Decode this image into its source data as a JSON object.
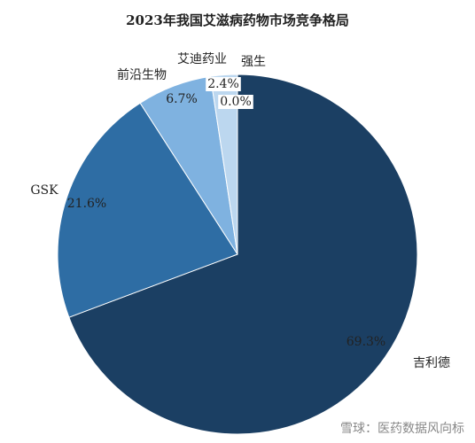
{
  "chart_data": {
    "type": "pie",
    "title": "2023年我国艾滋病药物市场竞争格局",
    "categories": [
      "吉利德",
      "GSK",
      "前沿生物",
      "艾迪药业",
      "强生"
    ],
    "values": [
      69.3,
      21.6,
      6.7,
      2.4,
      0.0
    ],
    "value_labels": [
      "69.3%",
      "21.6%",
      "6.7%",
      "2.4%",
      "0.0%"
    ],
    "colors": [
      "#1b3f63",
      "#2e6da4",
      "#7fb2e0",
      "#bcd7ef",
      "#dce9f6"
    ],
    "footer": "雪球：医药数据风向标"
  }
}
